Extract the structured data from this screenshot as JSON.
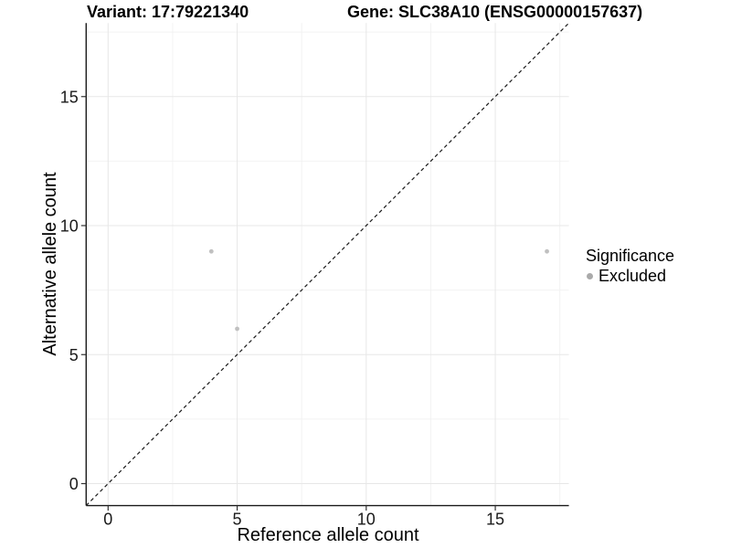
{
  "figure": {
    "title_left": "Variant: 17:79221340",
    "title_right": "Gene: SLC38A10 (ENSG00000157637)"
  },
  "chart_data": {
    "type": "scatter",
    "title": "Variant: 17:79221340  /  Gene: SLC38A10 (ENSG00000157637)",
    "xlabel": "Reference allele count",
    "ylabel": "Alternative allele count",
    "xlim": [
      -0.85,
      17.85
    ],
    "ylim": [
      -0.85,
      17.85
    ],
    "x_major_ticks": [
      0,
      5,
      10,
      15
    ],
    "y_major_ticks": [
      0,
      5,
      10,
      15
    ],
    "x_minor_ticks": [
      2.5,
      7.5,
      12.5,
      17.5
    ],
    "y_minor_ticks": [
      2.5,
      7.5,
      12.5,
      17.5
    ],
    "grid": "major and minor, light gray on white",
    "identity_line": {
      "type": "y=x",
      "style": "dashed",
      "color": "#1a1a1a"
    },
    "series": [
      {
        "name": "Excluded",
        "color": "#c0c0c0",
        "points": [
          {
            "x": 4,
            "y": 9
          },
          {
            "x": 5,
            "y": 6
          },
          {
            "x": 17,
            "y": 9
          }
        ]
      }
    ],
    "legend": {
      "title": "Significance",
      "position": "right",
      "items": [
        {
          "label": "Excluded",
          "color": "#aaaaaa"
        }
      ]
    }
  },
  "colors": {
    "background": "#ffffff",
    "axis_line": "#1a1a1a",
    "tick_mark": "#333333",
    "tick_label": "#1a1a1a",
    "grid_major": "#e7e7e7",
    "grid_minor": "#f2f2f2",
    "point": "#c0c0c0",
    "dashed_line": "#1a1a1a"
  }
}
